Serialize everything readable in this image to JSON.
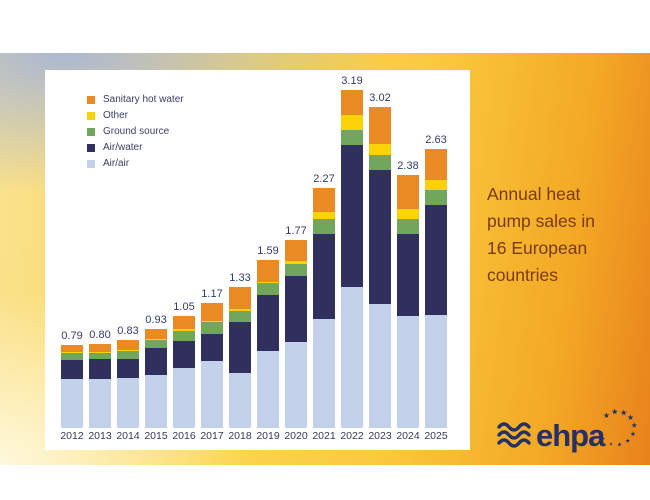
{
  "card": {
    "title": "Annual heat\npump sales in\n16 European\ncountries"
  },
  "legend": [
    {
      "label": "Sanitary hot water",
      "color": "#e98a25"
    },
    {
      "label": "Other",
      "color": "#fbd304"
    },
    {
      "label": "Ground source",
      "color": "#71a65d"
    },
    {
      "label": "Air/water",
      "color": "#312f5d"
    },
    {
      "label": "Air/air",
      "color": "#c3d2ea"
    }
  ],
  "chart_data": {
    "type": "bar",
    "stacked": true,
    "title": "Annual heat pump sales in 16 European countries",
    "xlabel": "",
    "ylabel": "",
    "ylim": [
      0,
      3.4
    ],
    "grid": false,
    "legend_position": "top-left",
    "categories": [
      "2012",
      "2013",
      "2014",
      "2015",
      "2016",
      "2017",
      "2018",
      "2019",
      "2020",
      "2021",
      "2022",
      "2023",
      "2024",
      "2025"
    ],
    "totals": [
      "0.79",
      "0.80",
      "0.83",
      "0.93",
      "1.05",
      "1.17",
      "1.33",
      "1.59",
      "1.77",
      "2.27",
      "3.19",
      "3.02",
      "2.38",
      "2.63"
    ],
    "series": [
      {
        "name": "Air/air",
        "color": "#c3d2ea",
        "values": [
          0.46,
          0.46,
          0.47,
          0.5,
          0.57,
          0.63,
          0.52,
          0.73,
          0.81,
          1.03,
          1.33,
          1.17,
          1.06,
          1.07
        ]
      },
      {
        "name": "Air/water",
        "color": "#312f5d",
        "values": [
          0.18,
          0.19,
          0.18,
          0.25,
          0.25,
          0.25,
          0.48,
          0.53,
          0.62,
          0.8,
          1.34,
          1.26,
          0.77,
          1.04
        ]
      },
      {
        "name": "Ground source",
        "color": "#71a65d",
        "values": [
          0.07,
          0.06,
          0.08,
          0.08,
          0.09,
          0.11,
          0.1,
          0.11,
          0.11,
          0.14,
          0.14,
          0.14,
          0.14,
          0.14
        ]
      },
      {
        "name": "Other",
        "color": "#fbd304",
        "values": [
          0.01,
          0.01,
          0.01,
          0.01,
          0.02,
          0.01,
          0.02,
          0.01,
          0.03,
          0.07,
          0.14,
          0.1,
          0.09,
          0.09
        ]
      },
      {
        "name": "Sanitary hot water",
        "color": "#e98a25",
        "values": [
          0.07,
          0.08,
          0.09,
          0.09,
          0.12,
          0.17,
          0.21,
          0.21,
          0.2,
          0.23,
          0.24,
          0.35,
          0.32,
          0.29
        ]
      }
    ]
  },
  "logo": {
    "text": "ehpa"
  },
  "colors": {
    "title_text": "#7a3a0f",
    "label_text": "#343c6b",
    "logo_navy": "#243066",
    "card_left": "#fae291",
    "card_right": "#e8821c"
  }
}
